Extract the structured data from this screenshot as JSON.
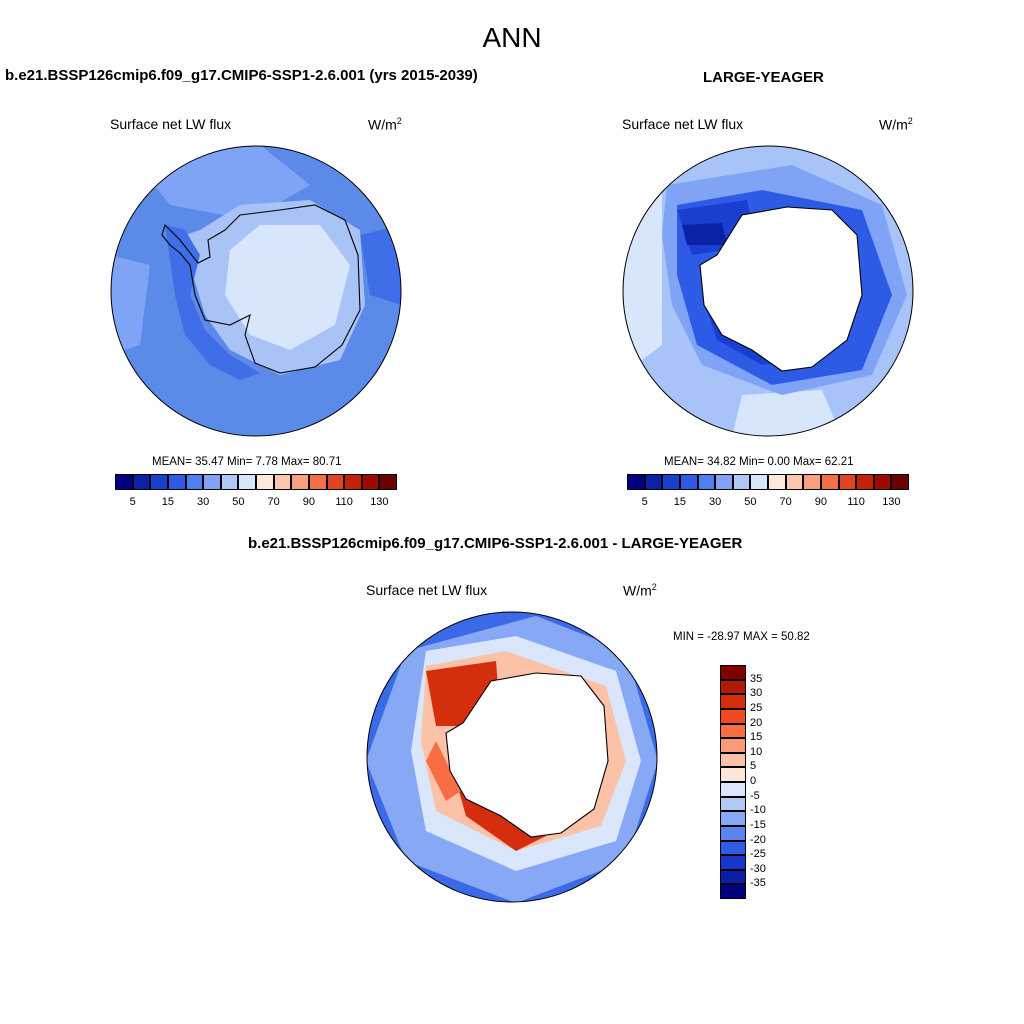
{
  "figure": {
    "title": "ANN",
    "colors": {
      "background": "#ffffff",
      "coastline": "#000000"
    }
  },
  "panels": [
    {
      "id": "model",
      "title": "b.e21.BSSP126cmip6.f09_g17.CMIP6-SSP1-2.6.001 (yrs 2015-2039)",
      "left_label": "Surface net LW flux",
      "units": "W/m",
      "units_sup": "2",
      "stats": "MEAN=  35.47  Min=   7.78  Max=  80.71",
      "colorbar": {
        "orientation": "horizontal",
        "colors": [
          "#000080",
          "#0a22a8",
          "#1a3fd0",
          "#2e5be6",
          "#4f7ff0",
          "#7fa4f5",
          "#b0c8f8",
          "#d8e6fb",
          "#fde9dc",
          "#fcc8ad",
          "#f8a07f",
          "#f26f48",
          "#e5431f",
          "#c5200b",
          "#9c0a04",
          "#6a0000"
        ],
        "labels": [
          "5",
          "15",
          "30",
          "50",
          "70",
          "90",
          "110",
          "130"
        ]
      },
      "map": {
        "ocean_color": "#5b8ae8",
        "fill_colors": [
          "#7fa4f5",
          "#b0c8f8",
          "#d8e6fb",
          "#3f6ee8"
        ]
      }
    },
    {
      "id": "obs",
      "title": "LARGE-YEAGER",
      "left_label": "Surface net LW flux",
      "units": "W/m",
      "units_sup": "2",
      "stats": "MEAN=  34.82  Min=   0.00  Max=  62.21",
      "colorbar": {
        "orientation": "horizontal",
        "colors": [
          "#000080",
          "#0a22a8",
          "#1a3fd0",
          "#2e5be6",
          "#4f7ff0",
          "#7fa4f5",
          "#b0c8f8",
          "#d8e6fb",
          "#fde9dc",
          "#fcc8ad",
          "#f8a07f",
          "#f26f48",
          "#e5431f",
          "#c5200b",
          "#9c0a04",
          "#6a0000"
        ],
        "labels": [
          "5",
          "15",
          "30",
          "50",
          "70",
          "90",
          "110",
          "130"
        ]
      },
      "map": {
        "ocean_color": "#a7c3f8",
        "fill_colors": [
          "#2e5be6",
          "#1a3fd0",
          "#0a22a8",
          "#d8e6fb"
        ]
      }
    },
    {
      "id": "diff",
      "title": "b.e21.BSSP126cmip6.f09_g17.CMIP6-SSP1-2.6.001 - LARGE-YEAGER",
      "left_label": "Surface net LW flux",
      "units": "W/m",
      "units_sup": "2",
      "stats": "MIN = -28.97 MAX =  50.82",
      "colorbar": {
        "orientation": "vertical",
        "colors": [
          "#800000",
          "#b01a07",
          "#d42e0f",
          "#f24a1f",
          "#f86e44",
          "#fb9a76",
          "#fcc2a7",
          "#fde6d8",
          "#d9e6fb",
          "#b2c9f8",
          "#86a8f5",
          "#5a85ef",
          "#2f5ce6",
          "#1636cc",
          "#0a1eaa",
          "#000080"
        ],
        "labels": [
          "35",
          "30",
          "25",
          "20",
          "15",
          "10",
          "5",
          "0",
          "-5",
          "-10",
          "-15",
          "-20",
          "-25",
          "-30",
          "-35"
        ]
      },
      "map": {
        "ocean_color": "#3a6ae8",
        "fill_colors": [
          "#fcc2a7",
          "#f86e44",
          "#d42e0f",
          "#9fbaf6"
        ]
      }
    }
  ]
}
